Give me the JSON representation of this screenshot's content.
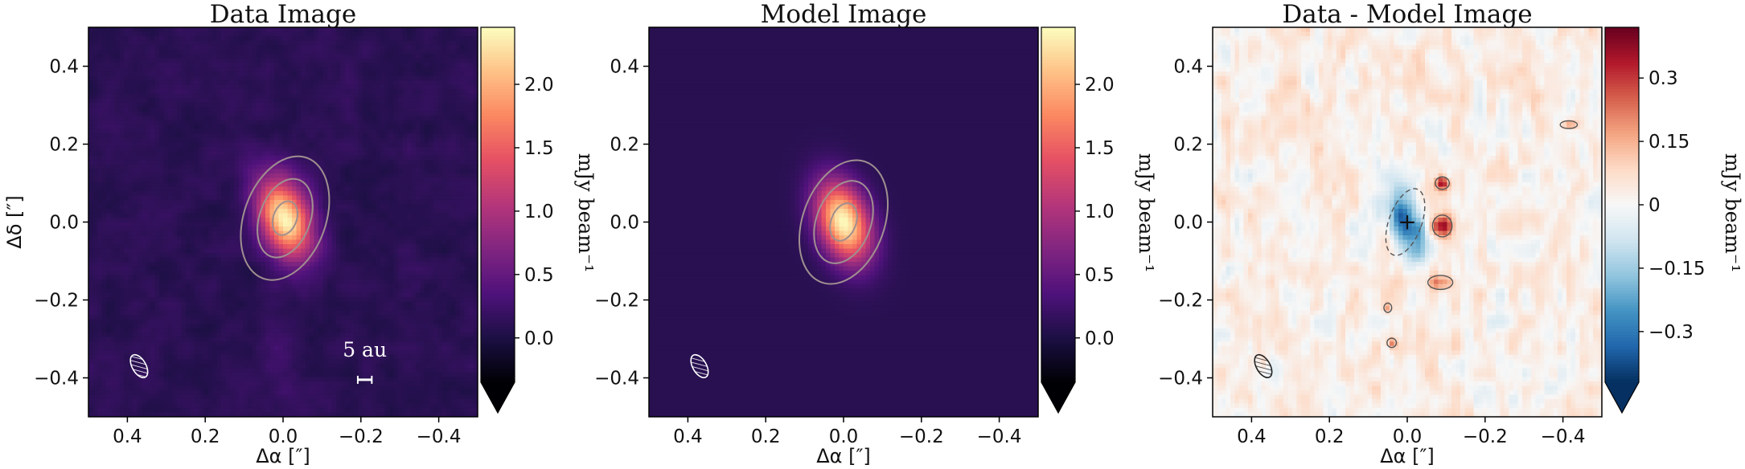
{
  "chart_data": [
    {
      "type": "heatmap",
      "title": "Data Image",
      "xlabel": "Δα [″]",
      "ylabel": "Δδ [″]",
      "xlim": [
        0.5,
        -0.5
      ],
      "ylim": [
        -0.5,
        0.5
      ],
      "x_ticks": [
        0.4,
        0.2,
        0.0,
        -0.2,
        -0.4
      ],
      "x_tick_labels": [
        "0.4",
        "0.2",
        "0.0",
        "−0.2",
        "−0.4"
      ],
      "y_ticks": [
        0.4,
        0.2,
        0.0,
        -0.2,
        -0.4
      ],
      "y_tick_labels": [
        "0.4",
        "0.2",
        "0.0",
        "−0.2",
        "−0.4"
      ],
      "colormap": "magma",
      "colorbar": {
        "label": "mJy beam⁻¹",
        "range": [
          -0.35,
          2.45
        ],
        "ticks": [
          0.0,
          0.5,
          1.0,
          1.5,
          2.0
        ],
        "tick_labels": [
          "0.0",
          "0.5",
          "1.0",
          "1.5",
          "2.0"
        ],
        "extend": "min"
      },
      "source": {
        "x": -0.005,
        "y": 0.01,
        "peak": 2.3,
        "sigma_major": 0.075,
        "sigma_minor": 0.045,
        "pa_deg": 20
      },
      "contours": [
        {
          "level": 0.6,
          "semi_major": 0.165,
          "semi_minor": 0.105
        },
        {
          "level": 1.2,
          "semi_major": 0.105,
          "semi_minor": 0.065
        },
        {
          "level": 1.8,
          "semi_major": 0.045,
          "semi_minor": 0.03
        }
      ],
      "beam": {
        "x": 0.37,
        "y": -0.37,
        "major": 0.065,
        "minor": 0.035,
        "pa_deg": 60
      },
      "scale_bar": {
        "label": "5 au",
        "x_center": -0.21,
        "y": -0.405,
        "length": 0.036,
        "label_y": -0.345
      }
    },
    {
      "type": "heatmap",
      "title": "Model Image",
      "xlabel": "Δα [″]",
      "xlim": [
        0.5,
        -0.5
      ],
      "ylim": [
        -0.5,
        0.5
      ],
      "x_ticks": [
        0.4,
        0.2,
        0.0,
        -0.2,
        -0.4
      ],
      "x_tick_labels": [
        "0.4",
        "0.2",
        "0.0",
        "−0.2",
        "−0.4"
      ],
      "y_ticks": [
        0.4,
        0.2,
        0.0,
        -0.2,
        -0.4
      ],
      "y_tick_labels": [
        "0.4",
        "0.2",
        "0.0",
        "−0.2",
        "−0.4"
      ],
      "colormap": "magma",
      "colorbar": {
        "label": "mJy beam⁻¹",
        "range": [
          -0.35,
          2.45
        ],
        "ticks": [
          0.0,
          0.5,
          1.0,
          1.5,
          2.0
        ],
        "tick_labels": [
          "0.0",
          "0.5",
          "1.0",
          "1.5",
          "2.0"
        ],
        "extend": "min"
      },
      "source": {
        "x": 0.0,
        "y": 0.0,
        "peak": 2.35,
        "sigma_major": 0.075,
        "sigma_minor": 0.045,
        "pa_deg": 20
      },
      "contours": [
        {
          "level": 0.6,
          "semi_major": 0.165,
          "semi_minor": 0.105
        },
        {
          "level": 1.2,
          "semi_major": 0.11,
          "semi_minor": 0.07
        },
        {
          "level": 1.8,
          "semi_major": 0.05,
          "semi_minor": 0.032
        }
      ],
      "beam": {
        "x": 0.37,
        "y": -0.37,
        "major": 0.065,
        "minor": 0.035,
        "pa_deg": 60
      }
    },
    {
      "type": "heatmap",
      "title": "Data - Model Image",
      "xlabel": "Δα [″]",
      "xlim": [
        0.5,
        -0.5
      ],
      "ylim": [
        -0.5,
        0.5
      ],
      "x_ticks": [
        0.4,
        0.2,
        0.0,
        -0.2,
        -0.4
      ],
      "x_tick_labels": [
        "0.4",
        "0.2",
        "0.0",
        "−0.2",
        "−0.4"
      ],
      "y_ticks": [
        0.4,
        0.2,
        0.0,
        -0.2,
        -0.4
      ],
      "y_tick_labels": [
        "0.4",
        "0.2",
        "0.0",
        "−0.2",
        "−0.4"
      ],
      "colormap": "RdBu_r",
      "colorbar": {
        "label": "mJy beam⁻¹",
        "range": [
          -0.42,
          0.42
        ],
        "ticks": [
          0.3,
          0.15,
          0.0,
          -0.15,
          -0.3
        ],
        "tick_labels": [
          "0.3",
          "0.15",
          "0",
          "−0.15",
          "−0.3"
        ],
        "extend": "min"
      },
      "features": [
        {
          "kind": "negative",
          "x": 0.005,
          "y": 0.0,
          "rx": 0.042,
          "ry": 0.09,
          "pa_deg": 20,
          "amp": -0.36
        },
        {
          "kind": "positive",
          "x": -0.09,
          "y": -0.01,
          "rx": 0.025,
          "ry": 0.028,
          "amp": 0.36
        },
        {
          "kind": "positive",
          "x": -0.09,
          "y": 0.1,
          "rx": 0.018,
          "ry": 0.016,
          "amp": 0.3
        },
        {
          "kind": "positive",
          "x": -0.085,
          "y": -0.155,
          "rx": 0.032,
          "ry": 0.018,
          "amp": 0.18
        },
        {
          "kind": "positive",
          "x": -0.415,
          "y": 0.25,
          "rx": 0.022,
          "ry": 0.01,
          "amp": 0.16
        },
        {
          "kind": "positive",
          "x": 0.04,
          "y": -0.31,
          "rx": 0.012,
          "ry": 0.012,
          "amp": 0.16
        },
        {
          "kind": "positive",
          "x": 0.05,
          "y": -0.22,
          "rx": 0.01,
          "ry": 0.012,
          "amp": 0.14
        }
      ],
      "center_marker": {
        "x": 0.0,
        "y": 0.0,
        "symbol": "+"
      },
      "beam": {
        "x": 0.37,
        "y": -0.37,
        "major": 0.065,
        "minor": 0.035,
        "pa_deg": 60
      }
    }
  ]
}
